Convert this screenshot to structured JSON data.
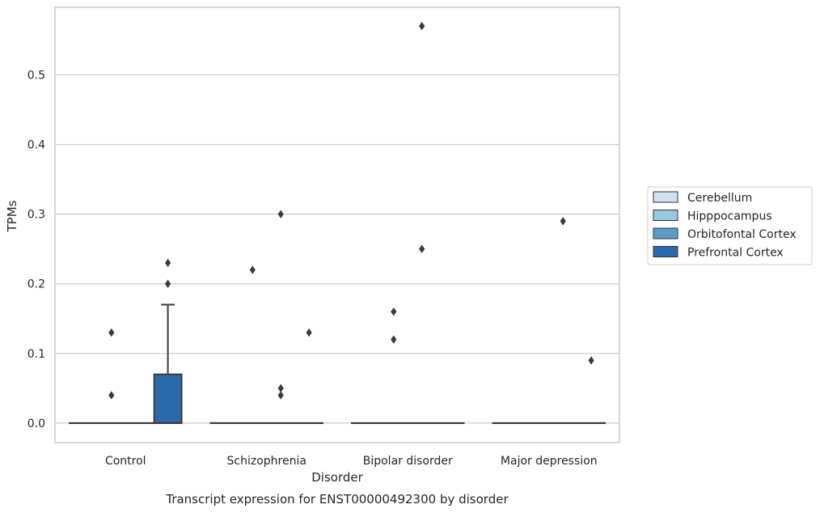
{
  "chart_data": {
    "type": "box",
    "xlabel": "Disorder",
    "ylabel": "TPMs",
    "caption": "Transcript expression for ENST00000492300 by disorder",
    "categories": [
      "Control",
      "Schizophrenia",
      "Bipolar disorder",
      "Major depression"
    ],
    "ylim": [
      -0.028,
      0.597
    ],
    "yticks": [
      "0.0",
      "0.1",
      "0.2",
      "0.3",
      "0.4",
      "0.5"
    ],
    "grid": true,
    "legend_position": "right",
    "series": [
      {
        "name": "Cerebellum",
        "color": "#d0e2f2",
        "boxes": [
          {
            "q1": 0,
            "median": 0,
            "q3": 0,
            "whisker_low": 0,
            "whisker_high": 0,
            "outliers": []
          },
          {
            "q1": 0,
            "median": 0,
            "q3": 0,
            "whisker_low": 0,
            "whisker_high": 0,
            "outliers": []
          },
          {
            "q1": 0,
            "median": 0,
            "q3": 0,
            "whisker_low": 0,
            "whisker_high": 0,
            "outliers": []
          },
          {
            "q1": 0,
            "median": 0,
            "q3": 0,
            "whisker_low": 0,
            "whisker_high": 0,
            "outliers": []
          }
        ]
      },
      {
        "name": "Hipppocampus",
        "color": "#9ac7e0",
        "boxes": [
          {
            "q1": 0,
            "median": 0,
            "q3": 0,
            "whisker_low": 0,
            "whisker_high": 0,
            "outliers": [
              0.04,
              0.13
            ]
          },
          {
            "q1": 0,
            "median": 0,
            "q3": 0,
            "whisker_low": 0,
            "whisker_high": 0,
            "outliers": [
              0.22
            ]
          },
          {
            "q1": 0,
            "median": 0,
            "q3": 0,
            "whisker_low": 0,
            "whisker_high": 0,
            "outliers": [
              0.12,
              0.16
            ]
          },
          {
            "q1": 0,
            "median": 0,
            "q3": 0,
            "whisker_low": 0,
            "whisker_high": 0,
            "outliers": []
          }
        ]
      },
      {
        "name": "Orbitofontal Cortex",
        "color": "#5b9cc9",
        "boxes": [
          {
            "q1": 0,
            "median": 0,
            "q3": 0,
            "whisker_low": 0,
            "whisker_high": 0,
            "outliers": []
          },
          {
            "q1": 0,
            "median": 0,
            "q3": 0,
            "whisker_low": 0,
            "whisker_high": 0,
            "outliers": [
              0.04,
              0.05,
              0.3
            ]
          },
          {
            "q1": 0,
            "median": 0,
            "q3": 0,
            "whisker_low": 0,
            "whisker_high": 0,
            "outliers": [
              0.25,
              0.57
            ]
          },
          {
            "q1": 0,
            "median": 0,
            "q3": 0,
            "whisker_low": 0,
            "whisker_high": 0,
            "outliers": [
              0.29
            ]
          }
        ]
      },
      {
        "name": "Prefrontal Cortex",
        "color": "#2a6aac",
        "boxes": [
          {
            "q1": 0,
            "median": 0,
            "q3": 0.07,
            "whisker_low": 0,
            "whisker_high": 0.17,
            "outliers": [
              0.2,
              0.23
            ]
          },
          {
            "q1": 0,
            "median": 0,
            "q3": 0,
            "whisker_low": 0,
            "whisker_high": 0,
            "outliers": [
              0.13
            ]
          },
          {
            "q1": 0,
            "median": 0,
            "q3": 0,
            "whisker_low": 0,
            "whisker_high": 0,
            "outliers": []
          },
          {
            "q1": 0,
            "median": 0,
            "q3": 0,
            "whisker_low": 0,
            "whisker_high": 0,
            "outliers": [
              0.09
            ]
          }
        ]
      }
    ]
  }
}
